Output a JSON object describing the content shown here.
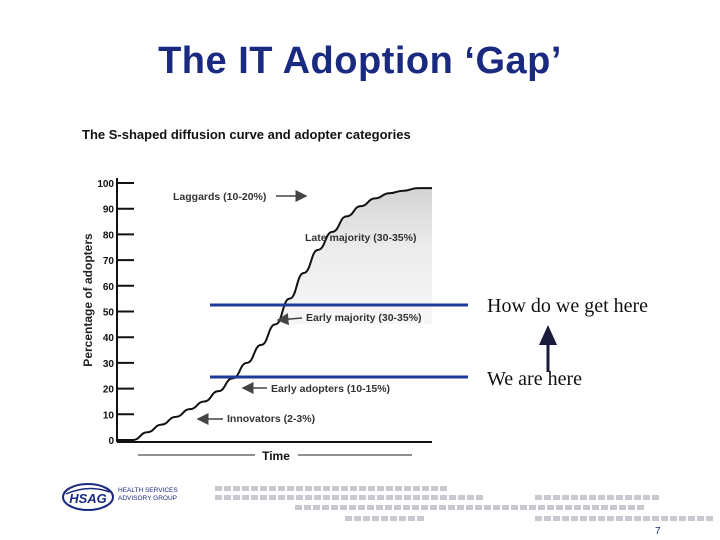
{
  "slide": {
    "title": "The IT Adoption ‘Gap’",
    "page_number": "7"
  },
  "figure": {
    "title": "The S-shaped diffusion curve and adopter categories",
    "ylabel": "Percentage of adopters",
    "xlabel": "Time",
    "yticks": [
      "100",
      "90",
      "80",
      "70",
      "60",
      "50",
      "40",
      "30",
      "20",
      "10",
      "0"
    ],
    "categories": [
      {
        "label": "Laggards (10-20%)",
        "arrow": true
      },
      {
        "label": "Late majority (30-35%)",
        "arrow": false
      },
      {
        "label": "Early majority (30-35%)",
        "arrow": true
      },
      {
        "label": "Early adopters (10-15%)",
        "arrow": true
      },
      {
        "label": "Innovators (2-3%)",
        "arrow": true
      }
    ]
  },
  "chart_data": {
    "type": "line",
    "title": "The S-shaped diffusion curve and adopter categories",
    "xlabel": "Time",
    "ylabel": "Percentage of adopters",
    "ylim": [
      0,
      100
    ],
    "series": [
      {
        "values": [
          0,
          3,
          6,
          9,
          12,
          15,
          19,
          24,
          30,
          37,
          45,
          55,
          65,
          74,
          81,
          87,
          91,
          94,
          96,
          97,
          98,
          98
        ]
      }
    ]
  },
  "annotations": {
    "target_text": "How do we get here",
    "current_text": "We are here",
    "line_color": "#1f3a9a"
  },
  "logo": {
    "text": "HSAG",
    "subtext_line1": "HEALTH SERVICES",
    "subtext_line2": "ADVISORY GROUP"
  },
  "colors": {
    "title": "#1a2a80",
    "accent": "#1f3a9a"
  }
}
